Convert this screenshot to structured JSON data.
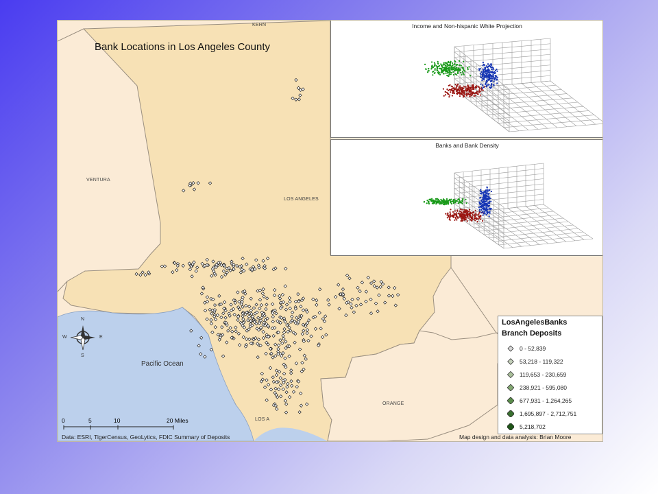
{
  "map": {
    "title": "Bank Locations in Los Angeles County",
    "counties": {
      "kern": "KERN",
      "ventura": "VENTURA",
      "los_angeles": "LOS ANGELES",
      "orange": "ORANGE"
    },
    "ocean": "Pacific Ocean",
    "city_label": "LOS A",
    "colors": {
      "la_county": "#f7e1b5",
      "neighbor": "#fbebd6",
      "ocean": "#bcd0ec",
      "boundary": "#9a8f80",
      "point": "#1c1c1c"
    }
  },
  "inset_top": {
    "title": "Income and Non-hispanic White Projection",
    "cluster_colors": [
      "#1a9a1a",
      "#9a1410",
      "#1434b4"
    ]
  },
  "inset_bottom": {
    "title": "Banks and Bank Density",
    "cluster_colors": [
      "#1a9a1a",
      "#9a1410",
      "#1434b4"
    ]
  },
  "legend": {
    "title": "LosAngelesBanks",
    "subtitle": "Branch Deposits",
    "items": [
      {
        "label": "0 - 52,839",
        "color": "#d8d8d8"
      },
      {
        "label": "53,218 - 119,322",
        "color": "#c3cfb9"
      },
      {
        "label": "119,653 - 230,659",
        "color": "#a9bf9a"
      },
      {
        "label": "238,921 - 595,080",
        "color": "#83a873"
      },
      {
        "label": "677,931 - 1,264,265",
        "color": "#5a8d4b"
      },
      {
        "label": "1,695,897 - 2,712,751",
        "color": "#3a7030"
      },
      {
        "label": "5,218,702",
        "color": "#1f5518"
      }
    ]
  },
  "compass": {
    "n": "N",
    "s": "S",
    "e": "E",
    "w": "W"
  },
  "scale": {
    "ticks": [
      "0",
      "5",
      "10",
      "20 Miles"
    ]
  },
  "credits": {
    "data": "Data: ESRI, TigerCensus, GeoLytics, FDIC Summary of Deposits",
    "design": "Map design and data analysis: Brian Moore"
  }
}
